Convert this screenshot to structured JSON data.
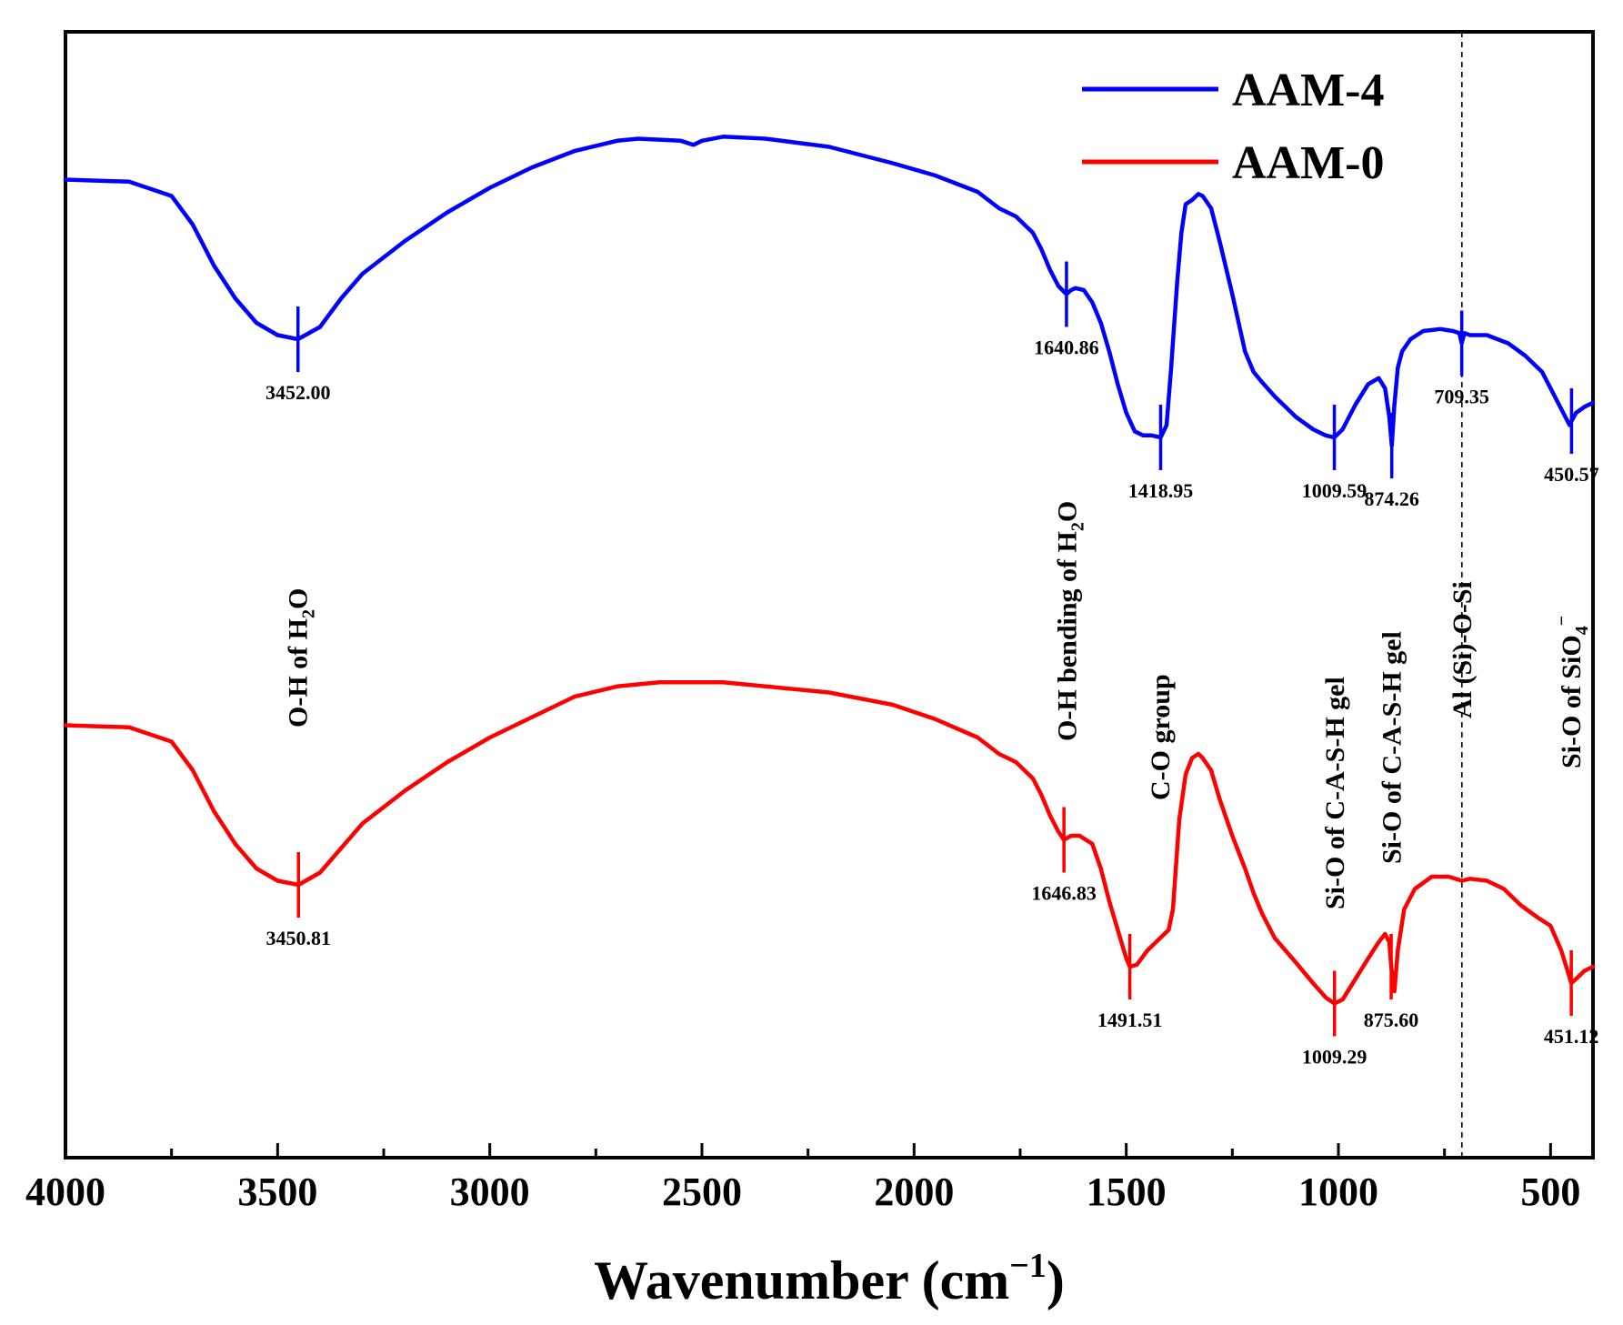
{
  "chart_data": {
    "type": "line",
    "xlabel": "Wavenumber (cm−1)",
    "xlabel_main": "Wavenumber (cm",
    "xlabel_sup": "−1",
    "xlabel_close": ")",
    "ylabel": "",
    "xlim": [
      4000,
      400
    ],
    "x_reversed": true,
    "x_ticks": [
      4000,
      3500,
      3000,
      2500,
      2000,
      1500,
      1000,
      500
    ],
    "x_tick_labels": [
      "4000",
      "3500",
      "3000",
      "2500",
      "2000",
      "1500",
      "1000",
      "500"
    ],
    "y_ticks_shown": false,
    "grid": false,
    "legend": "top-right",
    "dashed_reference_line_x": 709,
    "colors": {
      "AAM-4": "#0000ff",
      "AAM-0": "#ff0000",
      "frame": "#000000"
    },
    "series": [
      {
        "name": "AAM-4",
        "x": [
          4000,
          3850,
          3750,
          3700,
          3650,
          3600,
          3550,
          3500,
          3452,
          3400,
          3350,
          3300,
          3200,
          3100,
          3000,
          2900,
          2800,
          2700,
          2650,
          2550,
          2520,
          2500,
          2450,
          2350,
          2200,
          2050,
          1950,
          1850,
          1800,
          1780,
          1760,
          1720,
          1700,
          1680,
          1660,
          1640.86,
          1630,
          1620,
          1600,
          1580,
          1560,
          1540,
          1520,
          1500,
          1480,
          1460,
          1440,
          1418.95,
          1405,
          1395,
          1380,
          1370,
          1360,
          1345,
          1330,
          1320,
          1300,
          1280,
          1250,
          1220,
          1200,
          1180,
          1150,
          1100,
          1060,
          1030,
          1009.59,
          990,
          960,
          930,
          905,
          890,
          880,
          874.26,
          868,
          860,
          850,
          830,
          800,
          760,
          730,
          715,
          709.35,
          703,
          690,
          650,
          600,
          560,
          520,
          490,
          470,
          455,
          450.57,
          440,
          420,
          400
        ],
        "y": [
          85,
          84.5,
          81,
          74,
          64,
          56,
          50,
          47,
          46,
          49,
          56,
          62,
          70,
          77,
          83,
          88,
          92,
          94.5,
          95,
          94.5,
          93.5,
          94.5,
          95.5,
          95,
          93,
          89,
          86,
          82,
          78,
          77,
          76,
          72,
          68,
          63,
          59,
          57,
          58,
          58.5,
          58,
          55,
          50,
          43,
          35,
          28,
          23.5,
          22.5,
          22.5,
          22,
          25,
          38,
          60,
          72,
          79,
          80,
          81.5,
          81,
          78,
          70,
          57,
          43,
          38,
          35.5,
          32,
          27,
          24,
          22.5,
          22,
          24,
          30,
          35,
          36.5,
          34,
          27,
          20,
          30,
          39,
          43,
          46,
          48,
          48.5,
          48,
          47.5,
          45,
          47.5,
          47,
          47,
          45,
          42,
          38,
          32,
          28,
          25,
          26,
          28,
          29.5,
          30.5
        ]
      },
      {
        "name": "AAM-0",
        "x": [
          4000,
          3850,
          3750,
          3700,
          3650,
          3600,
          3550,
          3500,
          3450.81,
          3400,
          3350,
          3300,
          3200,
          3100,
          3000,
          2900,
          2800,
          2700,
          2600,
          2500,
          2450,
          2350,
          2200,
          2050,
          1950,
          1850,
          1800,
          1780,
          1760,
          1720,
          1700,
          1680,
          1660,
          1646.83,
          1630,
          1610,
          1580,
          1560,
          1540,
          1520,
          1500,
          1491.51,
          1475,
          1450,
          1420,
          1400,
          1390,
          1375,
          1360,
          1345,
          1330,
          1320,
          1300,
          1280,
          1250,
          1220,
          1200,
          1180,
          1150,
          1100,
          1060,
          1030,
          1009.29,
          990,
          960,
          930,
          905,
          890,
          880,
          875.6,
          868,
          860,
          845,
          820,
          780,
          740,
          709,
          690,
          650,
          610,
          570,
          530,
          500,
          475,
          460,
          451.12,
          440,
          420,
          400
        ],
        "y": [
          85,
          84.5,
          81,
          74,
          64,
          56,
          50,
          47,
          46,
          49,
          55,
          61,
          69,
          76,
          82,
          87,
          92,
          94.5,
          95.5,
          95.5,
          95.5,
          94.5,
          93,
          90,
          86.5,
          82,
          78,
          77,
          76,
          72,
          68,
          63,
          59,
          57,
          58,
          58,
          56,
          50,
          42,
          35,
          28,
          26,
          26.5,
          30,
          33,
          35,
          40,
          62,
          73,
          77,
          78,
          77,
          74,
          67,
          58,
          50,
          44,
          39,
          33,
          27,
          22,
          18.5,
          17,
          18,
          23,
          28,
          32,
          34,
          32,
          26,
          20,
          30,
          40,
          45,
          48,
          48,
          47,
          47.5,
          47,
          45,
          41,
          38,
          36,
          30,
          25,
          22,
          23,
          25,
          26
        ]
      }
    ],
    "peak_labels": [
      {
        "series": "AAM-4",
        "x": 3452.0,
        "text": "3452.00"
      },
      {
        "series": "AAM-4",
        "x": 1640.86,
        "text": "1640.86"
      },
      {
        "series": "AAM-4",
        "x": 1418.95,
        "text": "1418.95"
      },
      {
        "series": "AAM-4",
        "x": 1009.59,
        "text": "1009.59"
      },
      {
        "series": "AAM-4",
        "x": 874.26,
        "text": "874.26"
      },
      {
        "series": "AAM-4",
        "x": 709.35,
        "text": "709.35"
      },
      {
        "series": "AAM-4",
        "x": 450.57,
        "text": "450.57"
      },
      {
        "series": "AAM-0",
        "x": 3450.81,
        "text": "3450.81"
      },
      {
        "series": "AAM-0",
        "x": 1646.83,
        "text": "1646.83"
      },
      {
        "series": "AAM-0",
        "x": 1491.51,
        "text": "1491.51"
      },
      {
        "series": "AAM-0",
        "x": 1009.29,
        "text": "1009.29"
      },
      {
        "series": "AAM-0",
        "x": 875.6,
        "text": "875.60"
      },
      {
        "series": "AAM-0",
        "x": 451.12,
        "text": "451.12"
      }
    ],
    "annotations": [
      {
        "x": 3452,
        "text_parts": [
          "O-H of H",
          "2",
          "O"
        ],
        "sub_index": 1
      },
      {
        "x": 1640,
        "text_parts": [
          "O-H bending of H",
          "2",
          "O"
        ],
        "sub_index": 1
      },
      {
        "x": 1420,
        "text_parts": [
          "C-O group"
        ]
      },
      {
        "x": 1009,
        "text_parts": [
          "Si-O of C-A-S-H gel"
        ]
      },
      {
        "x": 875,
        "text_parts": [
          "Si-O of C-A-S-H gel"
        ]
      },
      {
        "x": 709,
        "text_parts": [
          "Al (Si)-O-Si"
        ]
      },
      {
        "x": 451,
        "text_parts": [
          "Si-O of SiO",
          "4",
          "−"
        ],
        "sub_index": 1,
        "sup_index": 2
      }
    ]
  }
}
